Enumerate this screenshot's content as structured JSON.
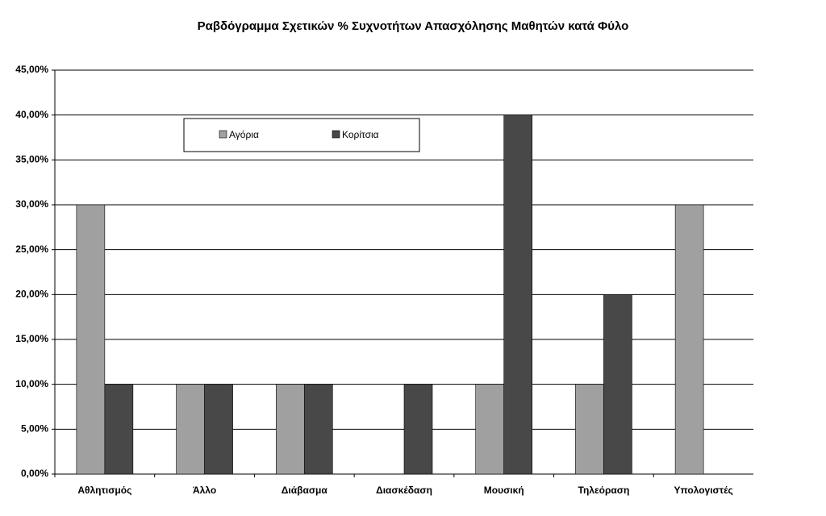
{
  "chart_data": {
    "type": "bar",
    "title": "Ραβδόγραμμα Σχετικών % Συχνοτήτων Απασχόλησης Μαθητών κατά Φύλο",
    "categories": [
      "Αθλητισμός",
      "Άλλο",
      "Διάβασμα",
      "Διασκέδαση",
      "Μουσική",
      "Τηλεόραση",
      "Υπολογιστές"
    ],
    "series": [
      {
        "name": "Αγόρια",
        "color": "#a0a0a0",
        "values": [
          30,
          10,
          10,
          0,
          10,
          10,
          30
        ]
      },
      {
        "name": "Κορίτσια",
        "color": "#484848",
        "values": [
          10,
          10,
          10,
          10,
          40,
          20,
          0
        ]
      }
    ],
    "ylim": [
      0,
      45
    ],
    "yticks": [
      {
        "value": 0,
        "label": "0,00%"
      },
      {
        "value": 5,
        "label": "5,00%"
      },
      {
        "value": 10,
        "label": "10,00%"
      },
      {
        "value": 15,
        "label": "15,00%"
      },
      {
        "value": 20,
        "label": "20,00%"
      },
      {
        "value": 25,
        "label": "25,00%"
      },
      {
        "value": 30,
        "label": "30,00%"
      },
      {
        "value": 35,
        "label": "35,00%"
      },
      {
        "value": 40,
        "label": "40,00%"
      },
      {
        "value": 45,
        "label": "45,00%"
      }
    ],
    "grid": true
  }
}
